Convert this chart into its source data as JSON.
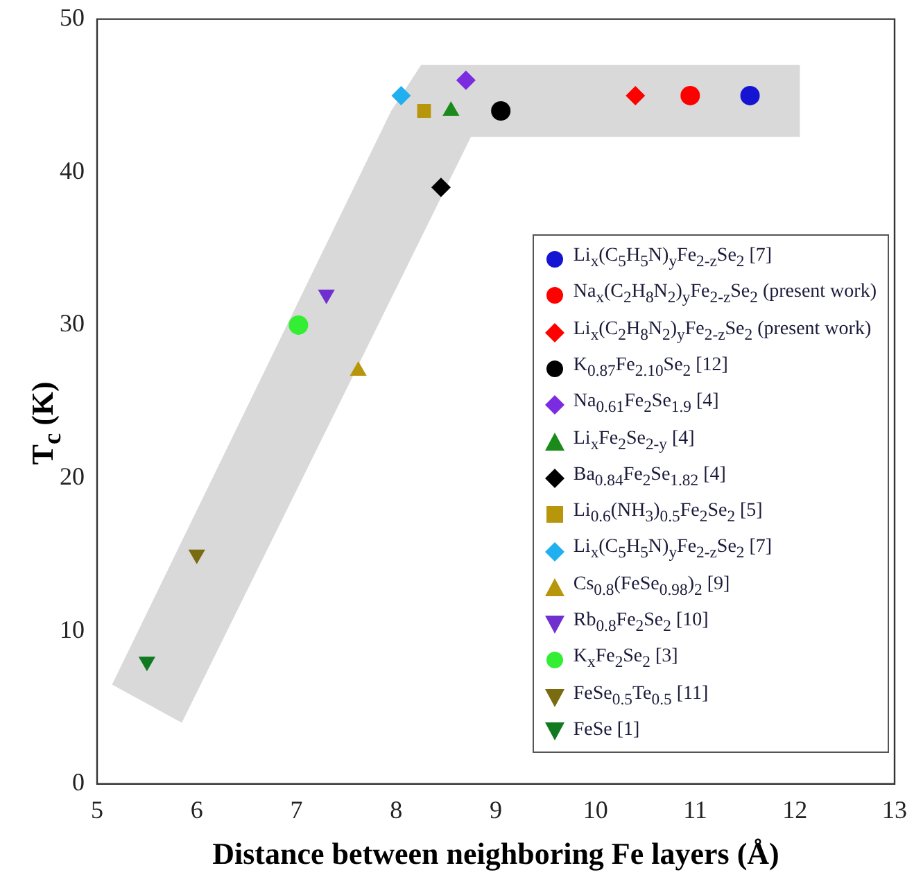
{
  "chart_data": {
    "type": "scatter",
    "xlabel": "Distance between neighboring Fe layers (Å)",
    "ylabel": "T$_{c}$ (K)",
    "xlim": [
      5,
      13
    ],
    "xticks": [
      5,
      6,
      7,
      8,
      9,
      10,
      11,
      12,
      13
    ],
    "ylim": [
      0,
      50
    ],
    "yticks": [
      0,
      10,
      20,
      30,
      40,
      50
    ],
    "legend": "bottom right",
    "grid": false,
    "series": [
      {
        "name": "Li$_{x}$(C$_{5}$H$_{5}$N)$_{y}$Fe$_{2-z}$Se$_{2}$ [7]",
        "color": "#1414d2",
        "marker": "circle",
        "x": [
          11.55
        ],
        "values": [
          45
        ]
      },
      {
        "name": "Na$_{x}$(C$_{2}$H$_{8}$N$_{2}$)$_{y}$Fe$_{2-z}$Se$_{2}$ (present work)",
        "color": "#ff0000",
        "marker": "circle",
        "x": [
          10.95
        ],
        "values": [
          45
        ]
      },
      {
        "name": "Li$_{x}$(C$_{2}$H$_{8}$N$_{2}$)$_{y}$Fe$_{2-z}$Se$_{2}$ (present work)",
        "color": "#ff0000",
        "marker": "diamond",
        "x": [
          10.4
        ],
        "values": [
          45
        ]
      },
      {
        "name": "K$_{0.87}$Fe$_{2.10}$Se$_{2}$ [12]",
        "color": "#000000",
        "marker": "circle",
        "x": [
          9.05
        ],
        "values": [
          44
        ]
      },
      {
        "name": "Na$_{0.61}$Fe$_{2}$Se$_{1.9}$ [4]",
        "color": "#7b2be0",
        "marker": "diamond",
        "x": [
          8.7
        ],
        "values": [
          46
        ]
      },
      {
        "name": "Li$_{x}$Fe$_{2}$Se$_{2-y}$ [4]",
        "color": "#1a8a1a",
        "marker": "triangle",
        "x": [
          8.55
        ],
        "values": [
          44
        ]
      },
      {
        "name": "Ba$_{0.84}$Fe$_{2}$Se$_{1.82}$ [4]",
        "color": "#000000",
        "marker": "diamond",
        "x": [
          8.45
        ],
        "values": [
          39
        ]
      },
      {
        "name": "Li$_{0.6}$(NH$_{3}$)$_{0.5}$Fe$_{2}$Se$_{2}$ [5]",
        "color": "#b8960c",
        "marker": "square",
        "x": [
          8.28
        ],
        "values": [
          44
        ]
      },
      {
        "name": "Li$_{x}$(C$_{5}$H$_{5}$N)$_{y}$Fe$_{2-z}$Se$_{2}$ [7]",
        "color": "#20b0f0",
        "marker": "diamond",
        "x": [
          8.05
        ],
        "values": [
          45
        ]
      },
      {
        "name": "Cs$_{0.8}$(FeSe$_{0.98}$)$_{2}$ [9]",
        "color": "#b8960c",
        "marker": "triangle",
        "x": [
          7.62
        ],
        "values": [
          27
        ]
      },
      {
        "name": "Rb$_{0.8}$Fe$_{2}$Se$_{2}$ [10]",
        "color": "#7030d0",
        "marker": "triangle-down",
        "x": [
          7.3
        ],
        "values": [
          32
        ]
      },
      {
        "name": "K$_{x}$Fe$_{2}$Se$_{2}$ [3]",
        "color": "#33ee33",
        "marker": "circle",
        "x": [
          7.02
        ],
        "values": [
          30
        ]
      },
      {
        "name": "FeSe$_{0.5}$Te$_{0.5}$ [11]",
        "color": "#7a6a10",
        "marker": "triangle-down",
        "x": [
          6.0
        ],
        "values": [
          15
        ]
      },
      {
        "name": "FeSe [1]",
        "color": "#107a20",
        "marker": "triangle-down",
        "x": [
          5.5
        ],
        "values": [
          8
        ]
      }
    ]
  }
}
